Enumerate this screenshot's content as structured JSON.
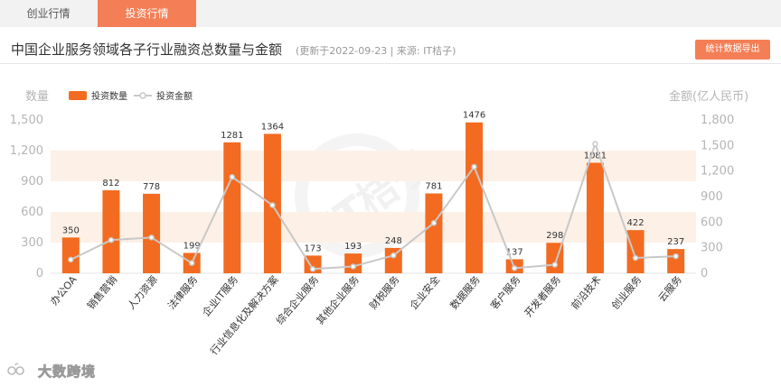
{
  "tabs": [
    {
      "label": "创业行情",
      "active": false
    },
    {
      "label": "投资行情",
      "active": true
    }
  ],
  "header": {
    "title": "中国企业服务领域各子行业融资总数量与金额",
    "subtitle": "(更新于2022-09-23 | 来源: IT桔子)",
    "export_label": "统计数据导出"
  },
  "watermark": {
    "text": "IT桔子"
  },
  "footer": {
    "logo_text": "大数跨境"
  },
  "colors": {
    "bar": "#f26b21",
    "line": "#c8c8c8",
    "band": "#fdf0e6",
    "accent": "#f47f56"
  },
  "chart_data": {
    "type": "bar",
    "categories": [
      "办公OA",
      "销售营销",
      "人力资源",
      "法律服务",
      "企业IT服务",
      "行业信息化及解决方案",
      "综合企业服务",
      "其他企业服务",
      "财税服务",
      "企业安全",
      "数据服务",
      "客户服务",
      "开发者服务",
      "前沿技术",
      "创业服务",
      "云服务"
    ],
    "series": [
      {
        "name": "投资数量",
        "type": "bar",
        "axis": "left",
        "values": [
          350,
          812,
          778,
          199,
          1281,
          1364,
          173,
          193,
          248,
          781,
          1476,
          137,
          298,
          1081,
          422,
          237
        ]
      },
      {
        "name": "投资金额",
        "type": "line",
        "axis": "right",
        "values": [
          160,
          390,
          420,
          120,
          1130,
          800,
          50,
          80,
          210,
          590,
          1250,
          60,
          100,
          1520,
          180,
          200
        ]
      }
    ],
    "ylabel_left": "数量",
    "ylabel_right": "金额(亿人民币)",
    "ylim_left": [
      0,
      1500
    ],
    "ylim_right": [
      0,
      1800
    ],
    "yticks_left": [
      "0",
      "300",
      "600",
      "900",
      "1,200",
      "1,500"
    ],
    "yticks_right": [
      "0",
      "300",
      "600",
      "900",
      "1,200",
      "1,500",
      "1,800"
    ],
    "legend_position": "top-left",
    "grid": "alternating horizontal bands"
  }
}
